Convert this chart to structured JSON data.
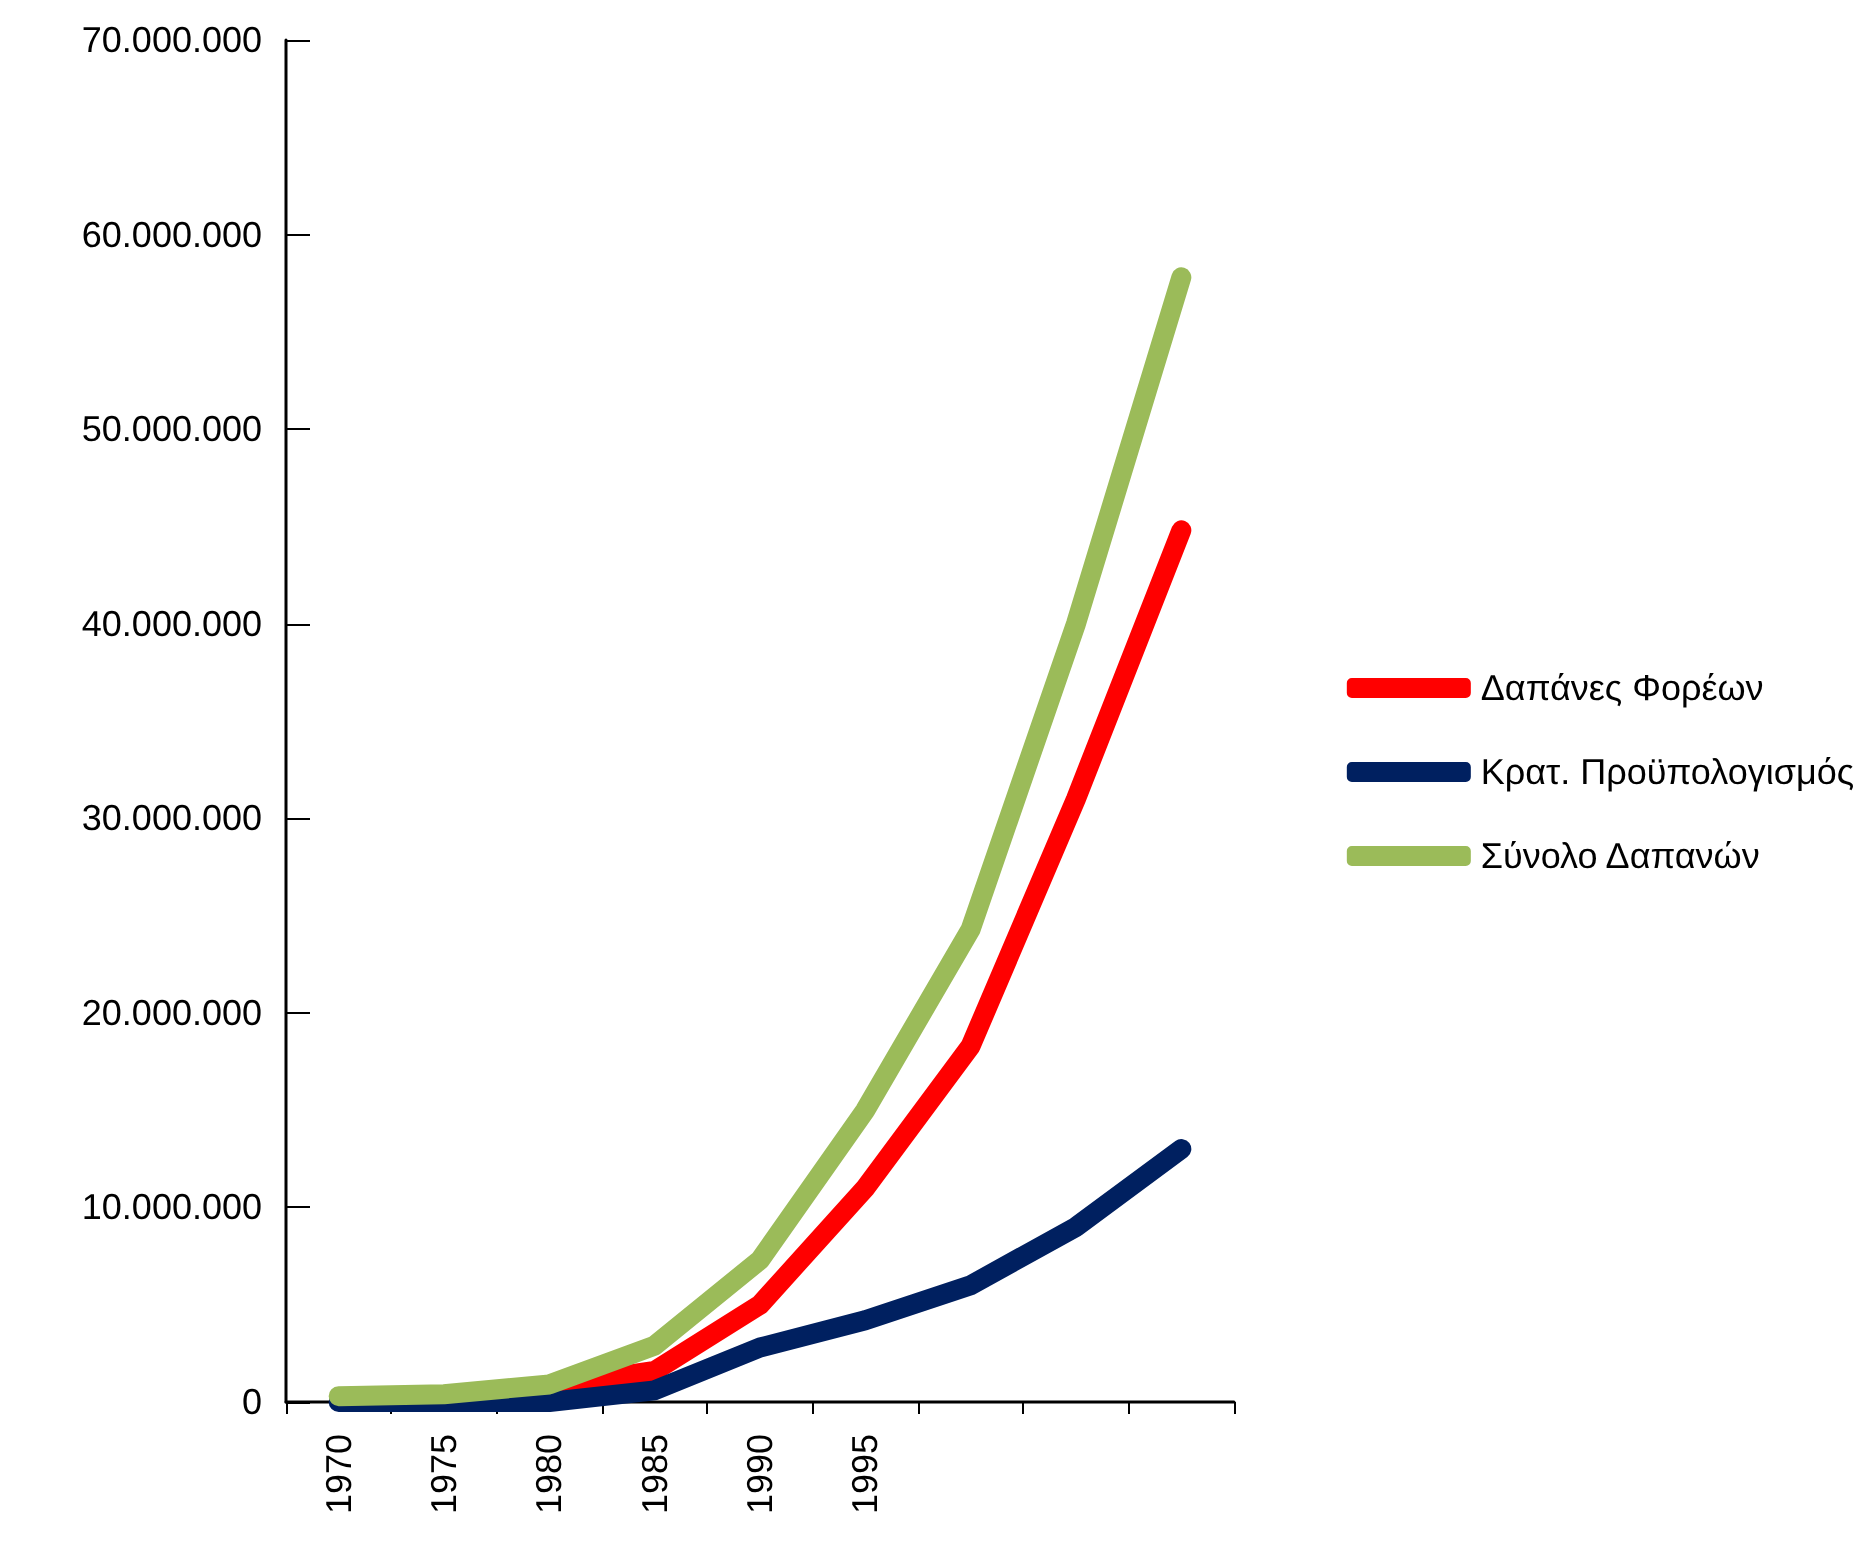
{
  "chart_data": {
    "type": "line",
    "categories": [
      "1970",
      "1975",
      "1980",
      "1985",
      "1990",
      "1995",
      null,
      null,
      null
    ],
    "series": [
      {
        "name": "Δαπάνες Φορέων",
        "color": "#ff0000",
        "values": [
          null,
          null,
          800000,
          1600000,
          5000000,
          11000000,
          18300000,
          31000000,
          44800000
        ]
      },
      {
        "name": "Κρατ. Προϋπολογισμός",
        "color": "#002060",
        "values": [
          0,
          0,
          0,
          600000,
          2800000,
          4200000,
          6000000,
          9000000,
          13000000
        ]
      },
      {
        "name": "Σύνολο Δαπανών",
        "color": "#9bbb59",
        "values": [
          300000,
          400000,
          900000,
          2900000,
          7300000,
          15000000,
          24300000,
          40000000,
          57800000
        ]
      }
    ],
    "ylim": [
      0,
      70000000
    ],
    "yticks": [
      0,
      {
        "value": 10000000,
        "label": "10.000.000"
      },
      {
        "value": 20000000,
        "label": "20.000.000"
      },
      {
        "value": 30000000,
        "label": "30.000.000"
      },
      {
        "value": 40000000,
        "label": "40.000.000"
      },
      {
        "value": 50000000,
        "label": "50.000.000"
      },
      {
        "value": 60000000,
        "label": "60.000.000"
      },
      {
        "value": 70000000,
        "label": "70.000.000"
      }
    ],
    "grid": false,
    "legend": "right",
    "marker": "none",
    "line_style": "solid"
  }
}
